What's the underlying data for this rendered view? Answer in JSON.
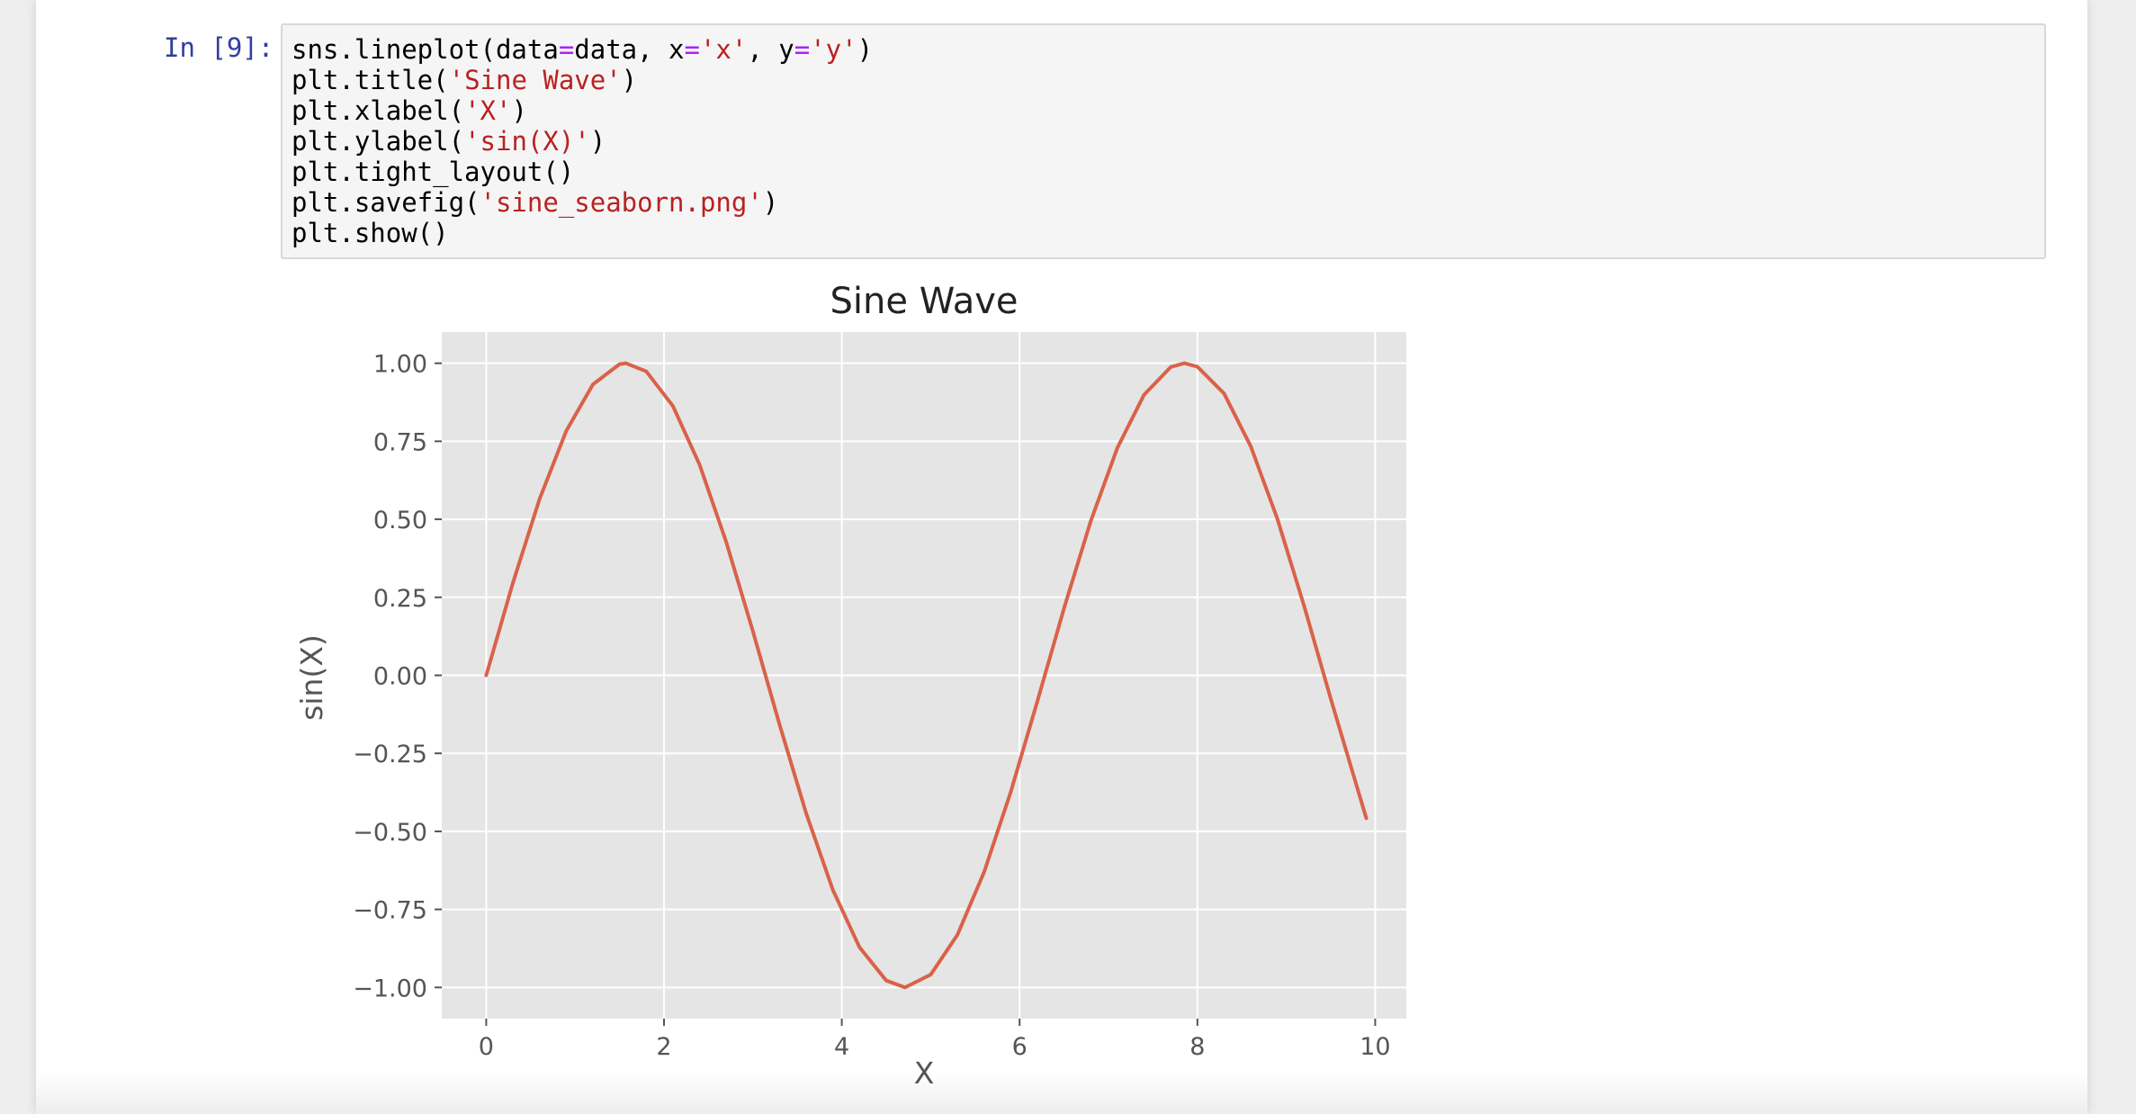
{
  "cell": {
    "prompt": "In [9]:",
    "code_lines": [
      [
        {
          "t": "sns.lineplot(data"
        },
        {
          "t": "=",
          "c": "op"
        },
        {
          "t": "data, x"
        },
        {
          "t": "=",
          "c": "op"
        },
        {
          "t": "'x'",
          "c": "str"
        },
        {
          "t": ", y"
        },
        {
          "t": "=",
          "c": "op"
        },
        {
          "t": "'y'",
          "c": "str"
        },
        {
          "t": ")"
        }
      ],
      [
        {
          "t": "plt.title("
        },
        {
          "t": "'Sine Wave'",
          "c": "str"
        },
        {
          "t": ")"
        }
      ],
      [
        {
          "t": "plt.xlabel("
        },
        {
          "t": "'X'",
          "c": "str"
        },
        {
          "t": ")"
        }
      ],
      [
        {
          "t": "plt.ylabel("
        },
        {
          "t": "'sin(X)'",
          "c": "str"
        },
        {
          "t": ")"
        }
      ],
      [
        {
          "t": "plt.tight_layout()"
        }
      ],
      [
        {
          "t": "plt.savefig("
        },
        {
          "t": "'sine_seaborn.png'",
          "c": "str"
        },
        {
          "t": ")"
        }
      ],
      [
        {
          "t": "plt.show()"
        }
      ]
    ]
  },
  "colors": {
    "line": "#d9624a",
    "plot_bg": "#e5e5e5",
    "grid": "#ffffff",
    "prompt": "#303f9f",
    "string": "#ba2121",
    "operator": "#aa22ff"
  },
  "chart_data": {
    "type": "line",
    "title": "Sine Wave",
    "xlabel": "X",
    "ylabel": "sin(X)",
    "xlim": [
      -0.5,
      10.35
    ],
    "ylim": [
      -1.1,
      1.1
    ],
    "xticks": [
      0,
      2,
      4,
      6,
      8,
      10
    ],
    "xtick_labels": [
      "0",
      "2",
      "4",
      "6",
      "8",
      "10"
    ],
    "yticks": [
      1.0,
      0.75,
      0.5,
      0.25,
      0.0,
      -0.25,
      -0.5,
      -0.75,
      -1.0
    ],
    "ytick_labels": [
      "1.00",
      "0.75",
      "0.50",
      "0.25",
      "0.00",
      "−0.25",
      "−0.50",
      "−0.75",
      "−1.00"
    ],
    "grid": true,
    "series": [
      {
        "x": [
          0.0,
          0.3,
          0.6,
          0.9,
          1.2,
          1.5,
          1.571,
          1.8,
          2.1,
          2.4,
          2.7,
          3.0,
          3.3,
          3.6,
          3.9,
          4.2,
          4.5,
          4.712,
          5.0,
          5.3,
          5.6,
          5.9,
          6.2,
          6.5,
          6.8,
          7.1,
          7.4,
          7.7,
          7.854,
          8.0,
          8.3,
          8.6,
          8.9,
          9.2,
          9.5,
          9.9
        ],
        "y": [
          0.0,
          0.296,
          0.565,
          0.783,
          0.932,
          0.997,
          1.0,
          0.974,
          0.863,
          0.675,
          0.427,
          0.141,
          -0.158,
          -0.443,
          -0.688,
          -0.872,
          -0.978,
          -1.0,
          -0.959,
          -0.832,
          -0.631,
          -0.374,
          -0.083,
          0.215,
          0.494,
          0.729,
          0.899,
          0.988,
          1.0,
          0.989,
          0.903,
          0.734,
          0.501,
          0.223,
          -0.075,
          -0.458
        ]
      }
    ]
  }
}
